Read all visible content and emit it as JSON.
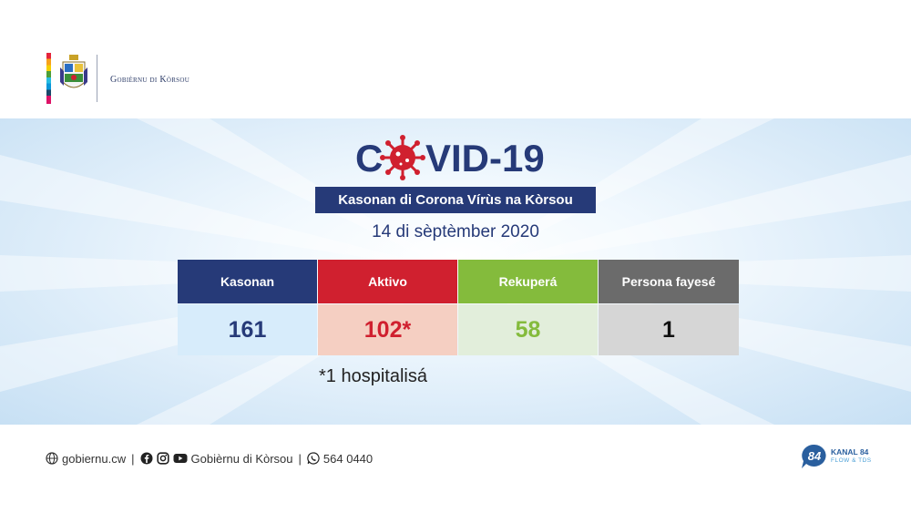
{
  "header": {
    "org_name": "Gobièrnu di Kòrsou"
  },
  "banner": {
    "title_c": "C",
    "title_rest": "VID-19",
    "subtitle": "Kasonan di Corona Vírùs na Kòrsou",
    "date": "14 di sèptèmber 2020",
    "columns": [
      {
        "label": "Kasonan",
        "value": "161",
        "header_color": "#263a78",
        "cell_color": "#d7ecfb",
        "text_color": "#263a78"
      },
      {
        "label": "Aktivo",
        "value": "102*",
        "header_color": "#d0202f",
        "cell_color": "#f5cfc2",
        "text_color": "#d0202f"
      },
      {
        "label": "Rekuperá",
        "value": "58",
        "header_color": "#84bb3c",
        "cell_color": "#e2eedb",
        "text_color": "#84bb3c"
      },
      {
        "label": "Persona fayesé",
        "value": "1",
        "header_color": "#6b6b6b",
        "cell_color": "#d6d6d6",
        "text_color": "#111111"
      }
    ],
    "footnote": "*1 hospitalisá"
  },
  "footer": {
    "website": "gobiernu.cw",
    "social": "Gobièrnu di Kòrsou",
    "phone": "564 0440",
    "sep": "|"
  },
  "kanal": {
    "badge": "84",
    "name": "KANAL 84",
    "sub": "FLOW & TDS"
  },
  "colors": {
    "navy": "#263a78",
    "virus": "#d0202f"
  }
}
